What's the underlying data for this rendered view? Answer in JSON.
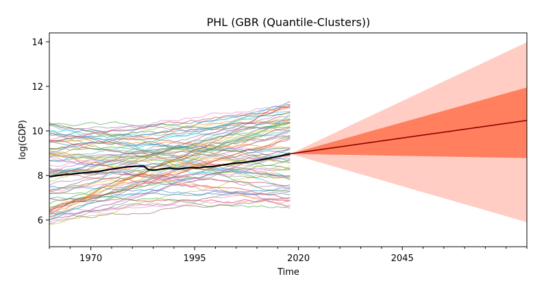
{
  "chart_data": {
    "type": "line",
    "title": "PHL (GBR (Quantile-Clusters))",
    "xlabel": "Time",
    "ylabel": "log(GDP)",
    "xlim": [
      1960,
      2075
    ],
    "ylim": [
      4.8,
      14.4
    ],
    "x_ticks": [
      1970,
      1995,
      2020,
      2045
    ],
    "y_ticks": [
      6,
      8,
      10,
      12,
      14
    ],
    "grid": false,
    "legend": "none",
    "history": {
      "name": "PHL",
      "x_start": 1960,
      "x_end": 2018,
      "color": "#000000",
      "values": [
        7.94,
        7.97,
        8.0,
        8.02,
        8.05,
        8.06,
        8.08,
        8.1,
        8.12,
        8.13,
        8.15,
        8.17,
        8.2,
        8.23,
        8.27,
        8.3,
        8.33,
        8.36,
        8.38,
        8.4,
        8.41,
        8.42,
        8.42,
        8.26,
        8.24,
        8.25,
        8.29,
        8.31,
        8.33,
        8.3,
        8.29,
        8.31,
        8.34,
        8.36,
        8.34,
        8.35,
        8.38,
        8.39,
        8.4,
        8.43,
        8.46,
        8.49,
        8.52,
        8.55,
        8.57,
        8.58,
        8.6,
        8.63,
        8.66,
        8.69,
        8.73,
        8.77,
        8.81,
        8.85,
        8.89,
        8.94,
        8.97
      ]
    },
    "comparison_lines": {
      "count": 80,
      "x_start": 1960,
      "x_end": 2018,
      "start_range": [
        5.8,
        10.4
      ],
      "end_range": [
        6.5,
        11.3
      ],
      "palette": [
        "#1f77b4",
        "#ff7f0e",
        "#2ca02c",
        "#d62728",
        "#9467bd",
        "#8c564b",
        "#e377c2",
        "#7f7f7f",
        "#bcbd22",
        "#17becf"
      ]
    },
    "forecast": {
      "x_start": 2018,
      "x_end": 2075,
      "start_value": 8.97,
      "median_end": 10.47,
      "inner_band_end": [
        8.78,
        11.95
      ],
      "outer_band_end": [
        5.9,
        13.98
      ],
      "median_color": "#8b0000",
      "inner_band_color": "#ff7f5f",
      "outer_band_color": "#ffcdc4"
    }
  }
}
